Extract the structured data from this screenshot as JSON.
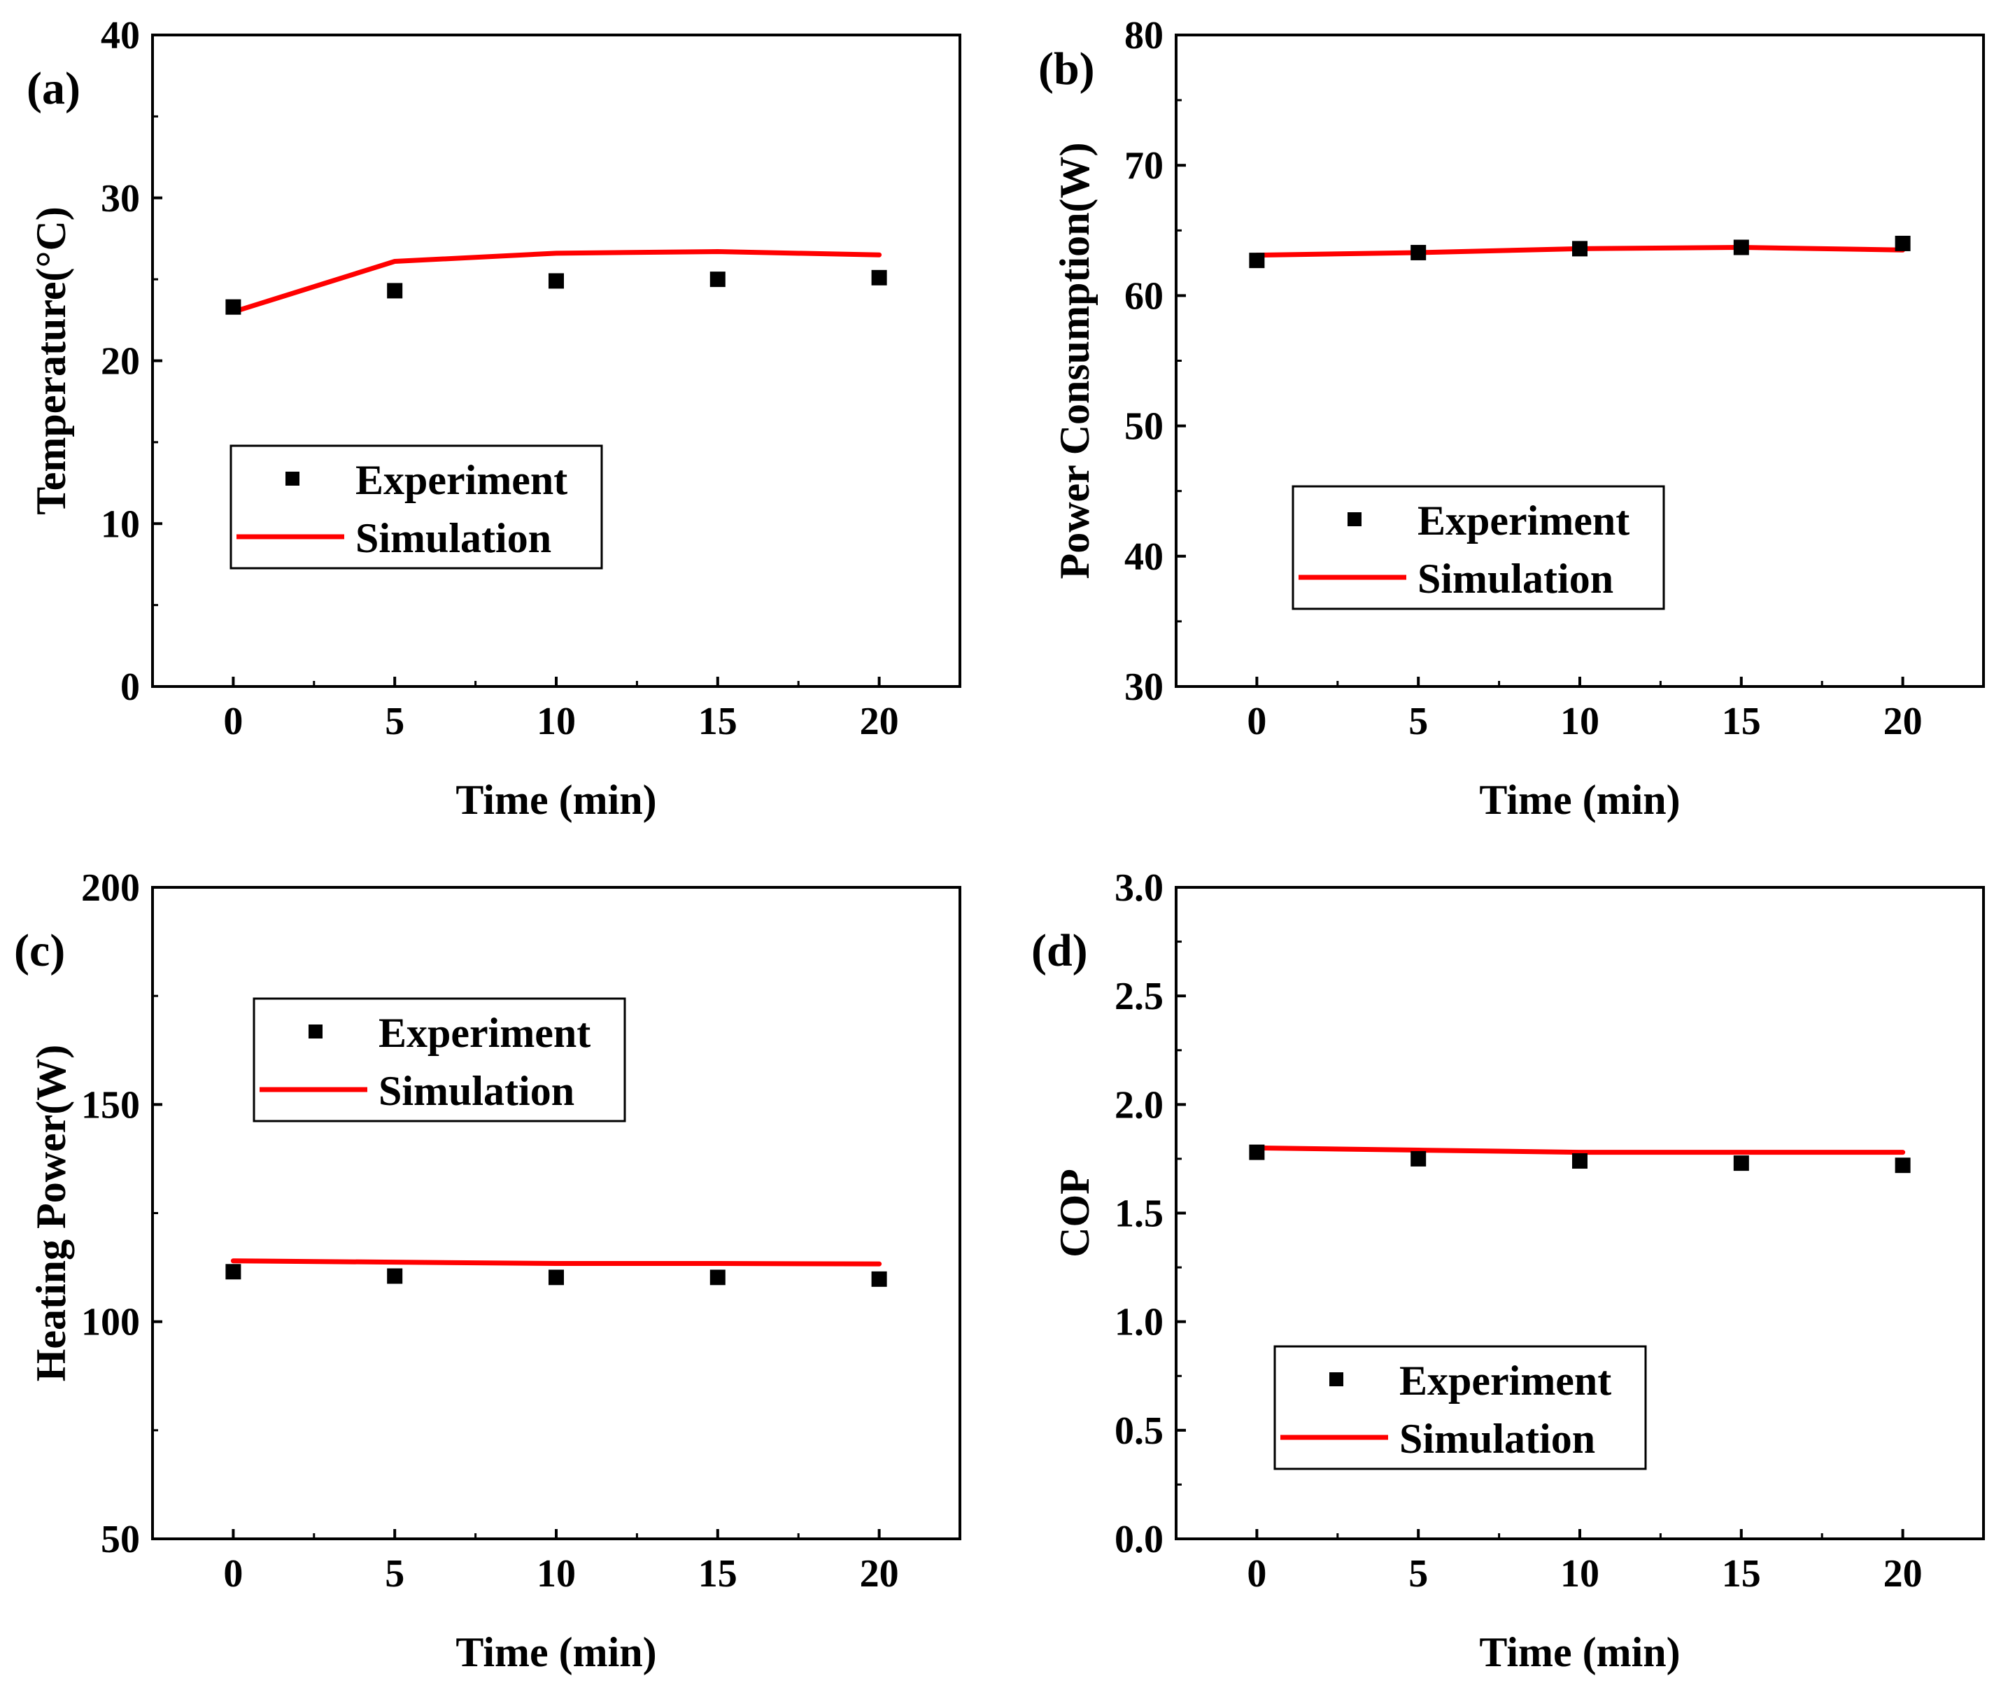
{
  "chart_data": [
    {
      "type": "line",
      "panel_label": "(a)",
      "xlabel": "Time (min)",
      "ylabel": "Temperature(°C)",
      "xlim": [
        -2.5,
        22.5
      ],
      "ylim": [
        0,
        40
      ],
      "xticks": [
        0,
        5,
        10,
        15,
        20
      ],
      "yticks": [
        0,
        10,
        20,
        30,
        40
      ],
      "yminor": [
        5,
        15,
        25,
        35
      ],
      "legend_position": "middle-left",
      "legend": {
        "experiment": "Experiment",
        "simulation": "Simulation"
      },
      "series": [
        {
          "name": "Experiment",
          "kind": "scatter",
          "color": "#000000",
          "x": [
            0,
            5,
            10,
            15,
            20
          ],
          "y": [
            23.3,
            24.3,
            24.9,
            25.0,
            25.1
          ]
        },
        {
          "name": "Simulation",
          "kind": "line",
          "color": "#ff0000",
          "x": [
            0,
            5,
            10,
            15,
            20
          ],
          "y": [
            23.0,
            26.1,
            26.6,
            26.7,
            26.5
          ]
        }
      ]
    },
    {
      "type": "line",
      "panel_label": "(b)",
      "xlabel": "Time (min)",
      "ylabel": "Power Consumption(W)",
      "xlim": [
        -2.5,
        22.5
      ],
      "ylim": [
        30,
        80
      ],
      "xticks": [
        0,
        5,
        10,
        15,
        20
      ],
      "yticks": [
        30,
        40,
        50,
        60,
        70,
        80
      ],
      "yminor": [
        35,
        45,
        55,
        65,
        75
      ],
      "legend_position": "middle-center",
      "legend": {
        "experiment": "Experiment",
        "simulation": "Simulation"
      },
      "series": [
        {
          "name": "Experiment",
          "kind": "scatter",
          "color": "#000000",
          "x": [
            0,
            5,
            10,
            15,
            20
          ],
          "y": [
            62.7,
            63.3,
            63.6,
            63.7,
            64.0
          ]
        },
        {
          "name": "Simulation",
          "kind": "line",
          "color": "#ff0000",
          "x": [
            0,
            5,
            10,
            15,
            20
          ],
          "y": [
            63.1,
            63.3,
            63.6,
            63.7,
            63.5
          ]
        }
      ]
    },
    {
      "type": "line",
      "panel_label": "(c)",
      "xlabel": "Time (min)",
      "ylabel": "Heating Power(W)",
      "xlim": [
        -2.5,
        22.5
      ],
      "ylim": [
        50,
        200
      ],
      "xticks": [
        0,
        5,
        10,
        15,
        20
      ],
      "yticks": [
        50,
        100,
        150,
        200
      ],
      "yminor": [
        75,
        125,
        175
      ],
      "legend_position": "upper-left",
      "legend": {
        "experiment": "Experiment",
        "simulation": "Simulation"
      },
      "series": [
        {
          "name": "Experiment",
          "kind": "scatter",
          "color": "#000000",
          "x": [
            0,
            5,
            10,
            15,
            20
          ],
          "y": [
            111.5,
            110.5,
            110.2,
            110.2,
            109.8
          ]
        },
        {
          "name": "Simulation",
          "kind": "line",
          "color": "#ff0000",
          "x": [
            0,
            5,
            10,
            15,
            20
          ],
          "y": [
            114.0,
            113.7,
            113.4,
            113.4,
            113.3
          ]
        }
      ]
    },
    {
      "type": "line",
      "panel_label": "(d)",
      "xlabel": "Time (min)",
      "ylabel": "COP",
      "xlim": [
        -2.5,
        22.5
      ],
      "ylim": [
        0.0,
        3.0
      ],
      "xticks": [
        0,
        5,
        10,
        15,
        20
      ],
      "yticks": [
        0.0,
        0.5,
        1.0,
        1.5,
        2.0,
        2.5,
        3.0
      ],
      "yminor": [
        0.25,
        0.75,
        1.25,
        1.75,
        2.25,
        2.75
      ],
      "decimals": 1,
      "legend_position": "lower-center",
      "legend": {
        "experiment": "Experiment",
        "simulation": "Simulation"
      },
      "series": [
        {
          "name": "Experiment",
          "kind": "scatter",
          "color": "#000000",
          "x": [
            0,
            5,
            10,
            15,
            20
          ],
          "y": [
            1.78,
            1.75,
            1.74,
            1.73,
            1.72
          ]
        },
        {
          "name": "Simulation",
          "kind": "line",
          "color": "#ff0000",
          "x": [
            0,
            5,
            10,
            15,
            20
          ],
          "y": [
            1.8,
            1.79,
            1.78,
            1.78,
            1.78
          ]
        }
      ]
    }
  ]
}
